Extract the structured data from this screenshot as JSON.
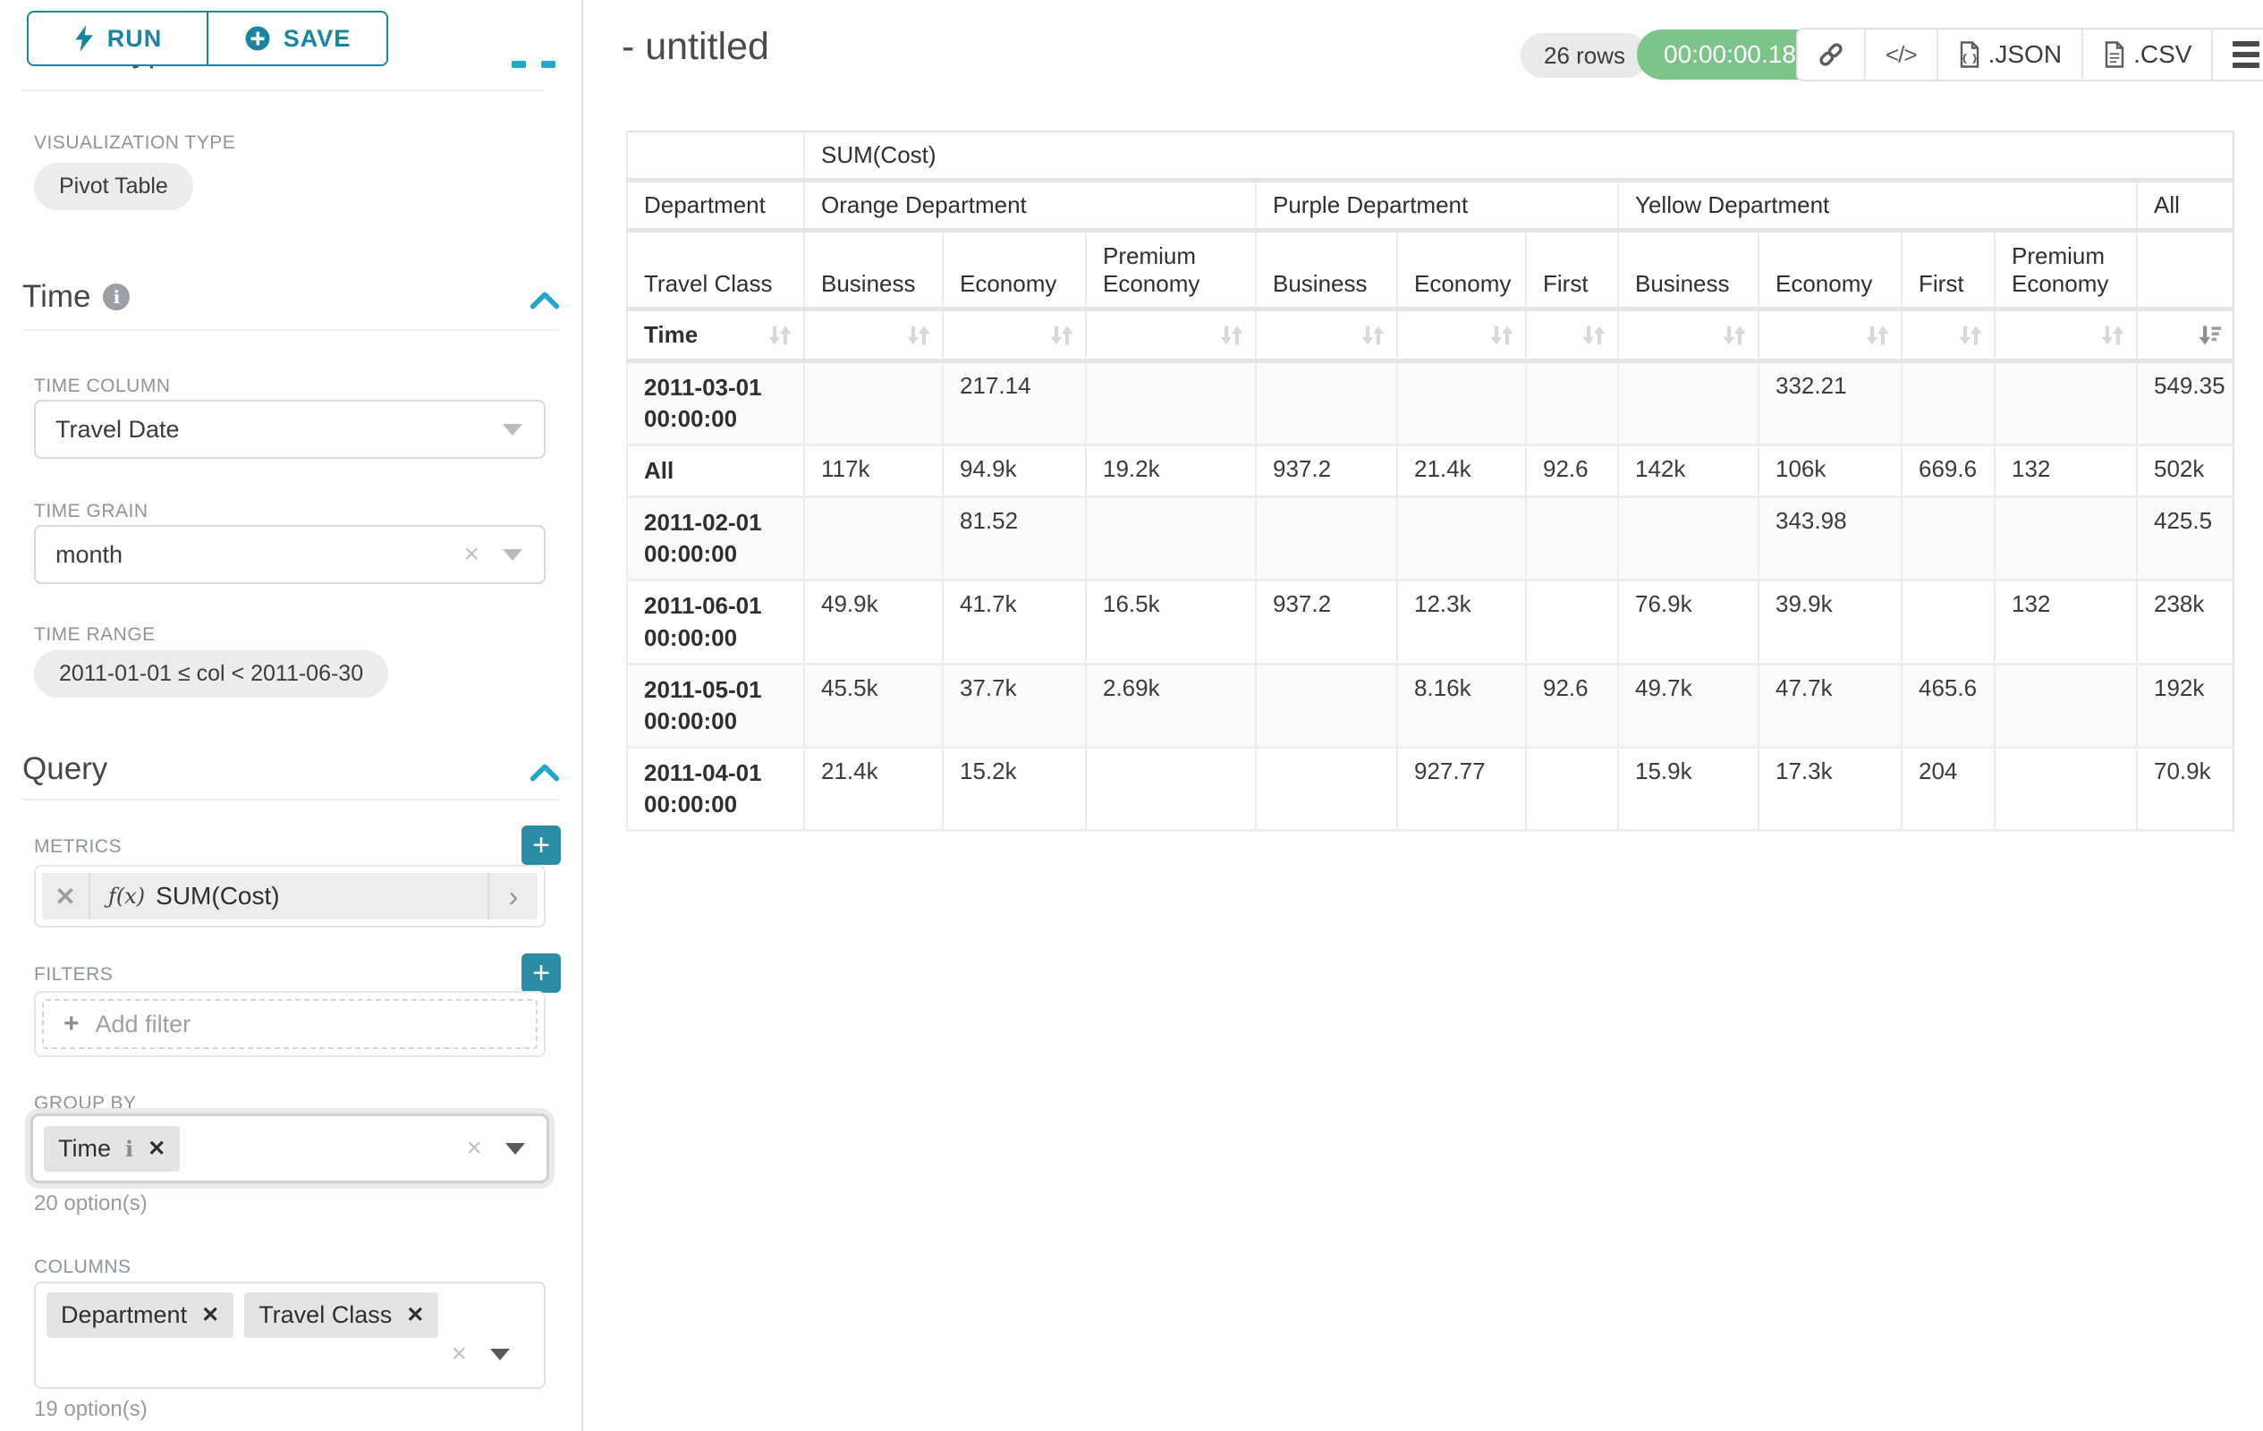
{
  "colors": {
    "accent_teal": "#1985a0",
    "chevron_blue": "#20a7c9",
    "timer_green": "#7dc488",
    "plus_button_teal": "#2b8ca6"
  },
  "icons": {
    "run": "lightning-icon",
    "save": "plus-circle-icon",
    "time_info": "info-icon",
    "collapse": "chevron-up-icon",
    "select_caret": "caret-down-icon",
    "metric_function": "fx-icon",
    "copy_link": "link-icon",
    "embed_code": "code-icon",
    "export_file": "file-icon",
    "menu": "hamburger-icon",
    "sort_inactive": "sort-arrows-icon",
    "sort_desc_active": "sort-descending-icon"
  },
  "toolbar": {
    "run_label": "RUN",
    "save_label": "SAVE"
  },
  "sidebar": {
    "chart_type_heading": "Chart Type",
    "visualization_type": {
      "label": "VISUALIZATION TYPE",
      "value": "Pivot Table"
    },
    "time_section": {
      "title": "Time",
      "time_column": {
        "label": "TIME COLUMN",
        "value": "Travel Date"
      },
      "time_grain": {
        "label": "TIME GRAIN",
        "value": "month"
      },
      "time_range": {
        "label": "TIME RANGE",
        "value": "2011-01-01 ≤ col < 2011-06-30"
      }
    },
    "query_section": {
      "title": "Query",
      "metrics": {
        "label": "METRICS",
        "metric_prefix": "ƒ(x)",
        "metric_name": "SUM(Cost)"
      },
      "filters": {
        "label": "FILTERS",
        "placeholder": "Add filter"
      },
      "group_by": {
        "label": "GROUP BY",
        "tags": [
          "Time"
        ],
        "hint": "20 option(s)"
      },
      "columns": {
        "label": "COLUMNS",
        "tags": [
          "Department",
          "Travel Class"
        ],
        "hint": "19 option(s)"
      }
    }
  },
  "header": {
    "title": "- untitled",
    "row_count": "26 rows",
    "timer": "00:00:00.18",
    "export_json_label": ".JSON",
    "export_csv_label": ".CSV"
  },
  "pivot": {
    "metric_label": "SUM(Cost)",
    "dim_col_label": "Department",
    "dim_col2_label": "Travel Class",
    "row_dim_label": "Time",
    "col_groups": [
      {
        "label": "Orange Department",
        "span": 3
      },
      {
        "label": "Purple Department",
        "span": 3
      },
      {
        "label": "Yellow Department",
        "span": 4
      },
      {
        "label": "All",
        "span": 1
      }
    ],
    "col_labels": [
      "Business",
      "Economy",
      "Premium Economy",
      "Business",
      "Economy",
      "First",
      "Business",
      "Economy",
      "First",
      "Premium Economy",
      ""
    ],
    "rows": [
      {
        "label": "2011-03-01 00:00:00",
        "values": [
          "",
          "217.14",
          "",
          "",
          "",
          "",
          "",
          "332.21",
          "",
          "",
          "549.35"
        ]
      },
      {
        "label": "All",
        "values": [
          "117k",
          "94.9k",
          "19.2k",
          "937.2",
          "21.4k",
          "92.6",
          "142k",
          "106k",
          "669.6",
          "132",
          "502k"
        ]
      },
      {
        "label": "2011-02-01 00:00:00",
        "values": [
          "",
          "81.52",
          "",
          "",
          "",
          "",
          "",
          "343.98",
          "",
          "",
          "425.5"
        ]
      },
      {
        "label": "2011-06-01 00:00:00",
        "values": [
          "49.9k",
          "41.7k",
          "16.5k",
          "937.2",
          "12.3k",
          "",
          "76.9k",
          "39.9k",
          "",
          "132",
          "238k"
        ]
      },
      {
        "label": "2011-05-01 00:00:00",
        "values": [
          "45.5k",
          "37.7k",
          "2.69k",
          "",
          "8.16k",
          "92.6",
          "49.7k",
          "47.7k",
          "465.6",
          "",
          "192k"
        ]
      },
      {
        "label": "2011-04-01 00:00:00",
        "values": [
          "21.4k",
          "15.2k",
          "",
          "",
          "927.77",
          "",
          "15.9k",
          "17.3k",
          "204",
          "",
          "70.9k"
        ]
      }
    ]
  }
}
